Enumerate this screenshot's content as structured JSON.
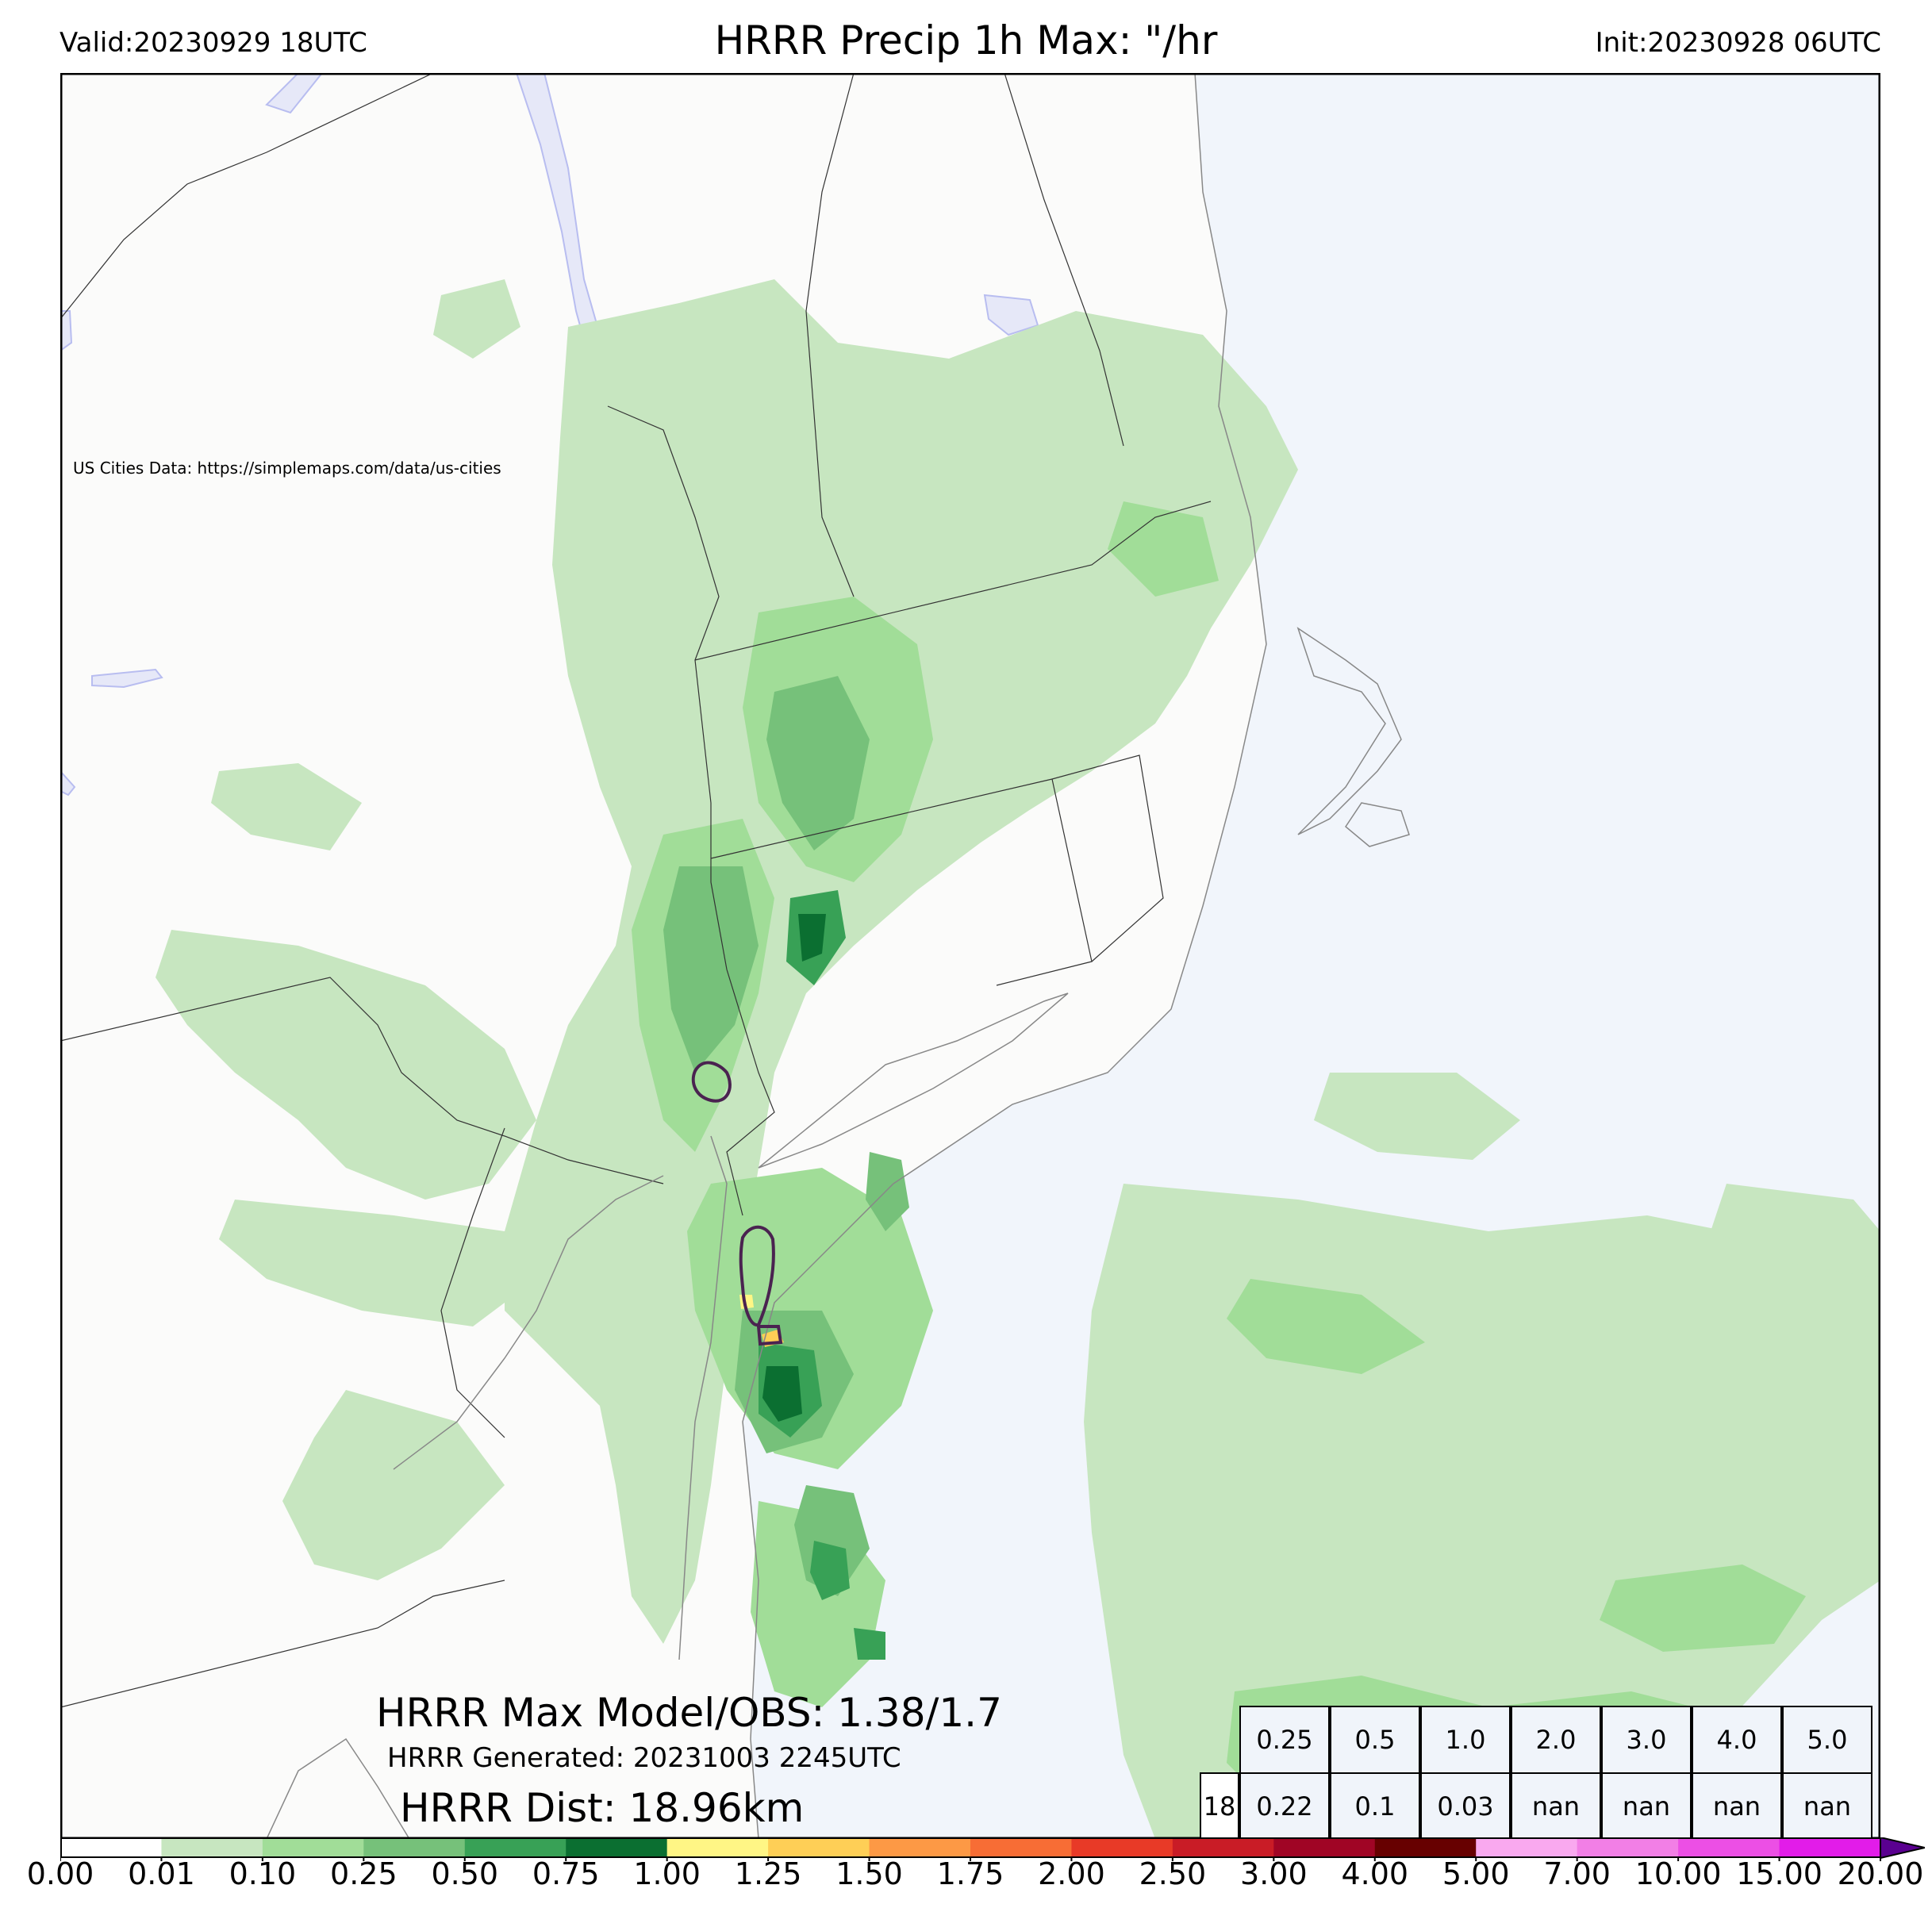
{
  "header": {
    "valid": "Valid:20230929 18UTC",
    "title": "HRRR Precip 1h Max: \"/hr",
    "init": "Init:20230928 06UTC"
  },
  "map": {
    "credit": "US Cities Data: https://simplemaps.com/data/us-cities",
    "colors": {
      "land": "#fbfbfa",
      "ocean": "#f1f5fb",
      "lake": "#e6e8f8",
      "border": "#000000",
      "contour": "#4a2350"
    }
  },
  "annotations": {
    "max_model_obs": "HRRR Max Model/OBS: 1.38/1.7",
    "generated": "HRRR Generated: 20231003 2245UTC",
    "distance": "HRRR Dist: 18.96km"
  },
  "stats_table": {
    "thresholds": [
      "0.25",
      "0.5",
      "1.0",
      "2.0",
      "3.0",
      "4.0",
      "5.0"
    ],
    "row_label": "18",
    "values": [
      "0.22",
      "0.1",
      "0.03",
      "nan",
      "nan",
      "nan",
      "nan"
    ]
  },
  "colorbar": {
    "ticks": [
      "0.00",
      "0.01",
      "0.10",
      "0.25",
      "0.50",
      "0.75",
      "1.00",
      "1.25",
      "1.50",
      "1.75",
      "2.00",
      "2.50",
      "3.00",
      "4.00",
      "5.00",
      "7.00",
      "10.00",
      "15.00",
      "20.00"
    ],
    "colors": [
      "#ffffff",
      "#c7e6c0",
      "#a1dd98",
      "#76c17a",
      "#38a156",
      "#0b6f31",
      "#fff685",
      "#fecf56",
      "#fd9945",
      "#f76d35",
      "#e83a27",
      "#c91c26",
      "#a00525",
      "#670000",
      "#f9a9ef",
      "#f27fe6",
      "#ec4fe5",
      "#e21ce9",
      "#8e00c7"
    ],
    "extend_color": "#5a0090"
  }
}
